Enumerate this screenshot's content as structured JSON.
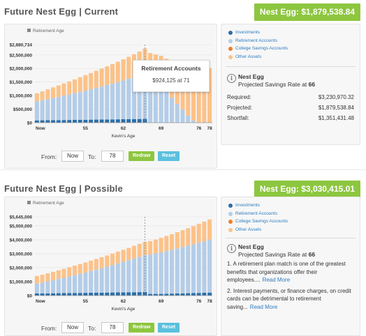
{
  "sections": [
    {
      "title": "Future Nest Egg | Current",
      "badge": "Nest Egg: $1,879,538.84",
      "legend": [
        {
          "label": "Investments",
          "color": "#2b6ea8"
        },
        {
          "label": "Retirement Accounts",
          "color": "#b4cde8"
        },
        {
          "label": "College Savings Accounts",
          "color": "#f07d2a"
        },
        {
          "label": "Other Assets",
          "color": "#fcc289"
        }
      ],
      "info": {
        "heading": "Nest Egg",
        "sub_prefix": "Projected Savings Rate at ",
        "sub_age": "66",
        "stats": [
          {
            "label": "Required:",
            "value": "$3,230,970.32"
          },
          {
            "label": "Projected:",
            "value": "$1,879,538.84"
          },
          {
            "label": "Shortfall:",
            "value": "$1,351,431.48"
          }
        ]
      },
      "controls": {
        "from_label": "From:",
        "from_value": "Now",
        "to_label": "To:",
        "to_value": "78",
        "redraw": "Redraw",
        "reset": "Reset"
      },
      "tooltip": {
        "title": "Retirement Accounts",
        "value": "$924,125 at 71"
      }
    },
    {
      "title": "Future Nest Egg | Possible",
      "badge": "Nest Egg: $3,030,415.01",
      "legend": [
        {
          "label": "Investments",
          "color": "#2b6ea8"
        },
        {
          "label": "Retirement Accounts",
          "color": "#b4cde8"
        },
        {
          "label": "College Savings Accounts",
          "color": "#f07d2a"
        },
        {
          "label": "Other Assets",
          "color": "#fcc289"
        }
      ],
      "info": {
        "heading": "Nest Egg",
        "sub_prefix": "Projected Savings Rate at ",
        "sub_age": "66",
        "notes": [
          {
            "text": "1. A retirement plan match is one of the greatest benefits that organizations offer their employees....",
            "link": "Read More"
          },
          {
            "text": "2. Interest payments, or finance charges, on credit cards can be detrimental to retirement saving...",
            "link": "Read More"
          }
        ]
      },
      "controls": {
        "from_label": "From:",
        "from_value": "Now",
        "to_label": "To:",
        "to_value": "78",
        "redraw": "Redraw",
        "reset": "Reset"
      }
    }
  ],
  "chart_data": [
    {
      "type": "bar",
      "stacked": true,
      "legend_title": "Retirement Age",
      "xlabel": "Kevin's Age",
      "x_tick_labels": [
        "Now",
        "55",
        "62",
        "69",
        "76",
        "78"
      ],
      "y_tick_labels": [
        "$0",
        "$500,000",
        "$1,000,000",
        "$1,500,000",
        "$2,000,000",
        "$2,500,000",
        "$2,880,734"
      ],
      "ylim": [
        0,
        2880734
      ],
      "retirement_age": 66,
      "x": [
        "Now",
        47,
        48,
        49,
        50,
        51,
        52,
        53,
        54,
        55,
        56,
        57,
        58,
        59,
        60,
        61,
        62,
        63,
        64,
        65,
        66,
        67,
        68,
        69,
        70,
        71,
        72,
        73,
        74,
        75,
        76,
        77,
        78
      ],
      "series": [
        {
          "name": "Investments",
          "values": [
            85000,
            88000,
            90000,
            93000,
            95000,
            98000,
            100000,
            103000,
            106000,
            108000,
            111000,
            114000,
            116000,
            119000,
            122000,
            125000,
            128000,
            131000,
            134000,
            137000,
            140000,
            0,
            0,
            0,
            0,
            0,
            0,
            0,
            0,
            0,
            0,
            0,
            0
          ]
        },
        {
          "name": "Retirement Accounts",
          "values": [
            700000,
            740000,
            780000,
            820000,
            860000,
            900000,
            940000,
            985000,
            1030000,
            1075000,
            1120000,
            1170000,
            1220000,
            1270000,
            1320000,
            1375000,
            1430000,
            1490000,
            1550000,
            1610000,
            1680000,
            1620000,
            1520000,
            1390000,
            1180000,
            924125,
            700000,
            480000,
            260000,
            80000,
            0,
            0,
            0
          ]
        },
        {
          "name": "College Savings Accounts",
          "values": [
            0,
            0,
            0,
            0,
            0,
            0,
            0,
            0,
            0,
            0,
            0,
            0,
            0,
            0,
            0,
            0,
            0,
            0,
            0,
            0,
            0,
            0,
            0,
            0,
            0,
            0,
            0,
            0,
            0,
            0,
            0,
            0,
            0
          ]
        },
        {
          "name": "Other Assets",
          "values": [
            300000,
            330000,
            360000,
            390000,
            420000,
            450000,
            480000,
            510000,
            540000,
            570000,
            600000,
            630000,
            660000,
            690000,
            720000,
            750000,
            780000,
            810000,
            840000,
            880000,
            920000,
            950000,
            1000000,
            1080000,
            1180000,
            1300000,
            1420000,
            1560000,
            1700000,
            1800000,
            1900000,
            1960000,
            2020000
          ]
        }
      ]
    },
    {
      "type": "bar",
      "stacked": true,
      "legend_title": "Retirement Age",
      "xlabel": "Kevin's Age",
      "x_tick_labels": [
        "Now",
        "55",
        "62",
        "69",
        "76",
        "78"
      ],
      "y_tick_labels": [
        "$0",
        "$1,000,000",
        "$2,000,000",
        "$3,000,000",
        "$4,000,000",
        "$5,000,000",
        "$5,645,006"
      ],
      "ylim": [
        0,
        5645006
      ],
      "retirement_age": 66,
      "x": [
        "Now",
        47,
        48,
        49,
        50,
        51,
        52,
        53,
        54,
        55,
        56,
        57,
        58,
        59,
        60,
        61,
        62,
        63,
        64,
        65,
        66,
        67,
        68,
        69,
        70,
        71,
        72,
        73,
        74,
        75,
        76,
        77,
        78
      ],
      "series": [
        {
          "name": "Investments",
          "values": [
            150000,
            155000,
            160000,
            165000,
            170000,
            175000,
            180000,
            185000,
            190000,
            195000,
            200000,
            205000,
            210000,
            215000,
            220000,
            225000,
            230000,
            235000,
            240000,
            245000,
            250000,
            120000,
            120000,
            120000,
            130000,
            140000,
            150000,
            160000,
            170000,
            180000,
            190000,
            200000,
            210000
          ]
        },
        {
          "name": "Retirement Accounts",
          "values": [
            700000,
            780000,
            860000,
            940000,
            1020000,
            1100000,
            1190000,
            1280000,
            1370000,
            1460000,
            1560000,
            1660000,
            1760000,
            1860000,
            1970000,
            2080000,
            2190000,
            2300000,
            2420000,
            2540000,
            2660000,
            2820000,
            2900000,
            2980000,
            3060000,
            3140000,
            3230000,
            3320000,
            3410000,
            3500000,
            3600000,
            3700000,
            3800000
          ]
        },
        {
          "name": "College Savings Accounts",
          "values": [
            0,
            0,
            0,
            0,
            0,
            0,
            0,
            0,
            0,
            0,
            0,
            0,
            0,
            0,
            0,
            0,
            0,
            0,
            0,
            0,
            0,
            0,
            0,
            0,
            0,
            0,
            0,
            0,
            0,
            0,
            0,
            0,
            0
          ]
        },
        {
          "name": "Other Assets",
          "values": [
            550000,
            560000,
            580000,
            600000,
            620000,
            640000,
            660000,
            680000,
            700000,
            720000,
            740000,
            760000,
            780000,
            800000,
            820000,
            840000,
            860000,
            880000,
            900000,
            920000,
            940000,
            960000,
            1000000,
            1040000,
            1080000,
            1120000,
            1160000,
            1200000,
            1250000,
            1300000,
            1350000,
            1400000,
            1450000
          ]
        }
      ]
    }
  ]
}
